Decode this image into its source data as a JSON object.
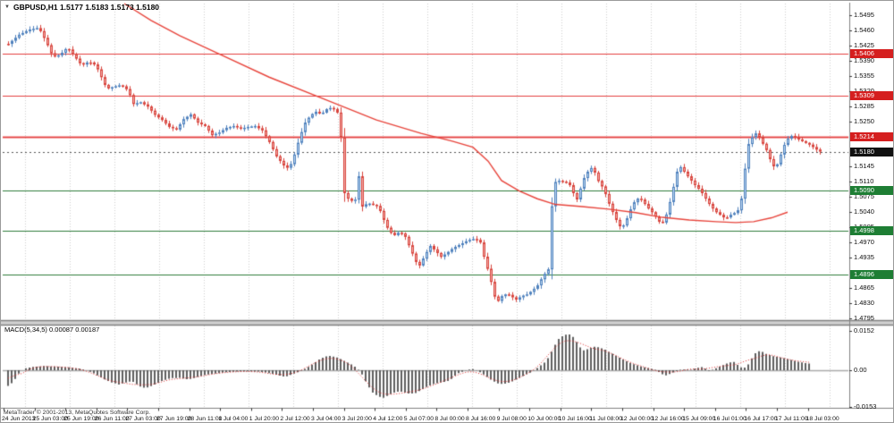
{
  "window": {
    "symbol_arrow": "▼",
    "title": "GBPUSD,H1 1.5177 1.5183 1.5173 1.5180"
  },
  "footer": {
    "copyright": "MetaTrader © 2001-2013, MetaQuotes Software Corp."
  },
  "colors": {
    "up_stroke": "#4f81bd",
    "up_fill": "#bdd7f0",
    "down_stroke": "#d8433c",
    "down_fill": "#f2aeaa",
    "ma": "#e8453c",
    "resistance": "#e34040",
    "support": "#2f7d3b",
    "current_price_line": "#555555",
    "grid": "#cfcfcf",
    "histogram": "#5f5f5f",
    "signal": "#e03030",
    "badge_red": "#d51f1f",
    "badge_green": "#1e7e34",
    "badge_black": "#111111",
    "frame": "#808080",
    "separator_fill": "#d0d0d0"
  },
  "chart_data": [
    {
      "type": "candlestick",
      "symbol": "GBPUSD",
      "timeframe": "H1",
      "title": "GBPUSD,H1 1.5177 1.5183 1.5173 1.5180",
      "quote": {
        "open": "1.5177",
        "high": "1.5183",
        "low": "1.5173",
        "close": "1.5180"
      },
      "ylim": [
        1.4795,
        1.5495
      ],
      "grid": "vertical-dotted",
      "y_ticks": [
        "1.5495",
        "1.5460",
        "1.5425",
        "1.5390",
        "1.5355",
        "1.5320",
        "1.5285",
        "1.5250",
        "1.5145",
        "1.5110",
        "1.5075",
        "1.5040",
        "1.5005",
        "1.4970",
        "1.4935",
        "1.4865",
        "1.4830",
        "1.4795"
      ],
      "x_labels": [
        "24 Jun 2013",
        "25 Jun 03:00",
        "25 Jun 19:00",
        "26 Jun 11:00",
        "27 Jun 03:00",
        "27 Jun 19:00",
        "28 Jun 11:00",
        "1 Jul 04:00",
        "1 Jul 20:00",
        "2 Jul 12:00",
        "3 Jul 04:00",
        "3 Jul 20:00",
        "4 Jul 12:00",
        "5 Jul 07:00",
        "8 Jul 00:00",
        "8 Jul 16:00",
        "9 Jul 08:00",
        "10 Jul 00:00",
        "10 Jul 16:00",
        "11 Jul 08:00",
        "12 Jul 00:00",
        "12 Jul 16:00",
        "15 Jul 09:00",
        "16 Jul 01:00",
        "16 Jul 17:00",
        "17 Jul 11:00",
        "18 Jul 03:00"
      ],
      "levels": {
        "resistance": [
          1.5406,
          1.5309,
          1.5214
        ],
        "support": [
          1.509,
          1.4998,
          1.4896
        ],
        "current": 1.518
      },
      "close_path": [
        [
          8,
          1.5429
        ],
        [
          20,
          1.545
        ],
        [
          32,
          1.5462
        ],
        [
          42,
          1.5466
        ],
        [
          50,
          1.5435
        ],
        [
          58,
          1.5398
        ],
        [
          66,
          1.5404
        ],
        [
          74,
          1.5421
        ],
        [
          82,
          1.54
        ],
        [
          90,
          1.5379
        ],
        [
          98,
          1.5388
        ],
        [
          106,
          1.5379
        ],
        [
          112,
          1.5352
        ],
        [
          118,
          1.5325
        ],
        [
          126,
          1.533
        ],
        [
          134,
          1.5334
        ],
        [
          142,
          1.5321
        ],
        [
          148,
          1.529
        ],
        [
          156,
          1.5294
        ],
        [
          164,
          1.5284
        ],
        [
          172,
          1.5265
        ],
        [
          180,
          1.5253
        ],
        [
          188,
          1.5237
        ],
        [
          196,
          1.5231
        ],
        [
          204,
          1.5255
        ],
        [
          212,
          1.5266
        ],
        [
          220,
          1.5247
        ],
        [
          228,
          1.5239
        ],
        [
          236,
          1.5218
        ],
        [
          244,
          1.5224
        ],
        [
          252,
          1.5235
        ],
        [
          260,
          1.5239
        ],
        [
          268,
          1.5233
        ],
        [
          276,
          1.5237
        ],
        [
          284,
          1.5239
        ],
        [
          292,
          1.5229
        ],
        [
          300,
          1.5202
        ],
        [
          308,
          1.5169
        ],
        [
          316,
          1.5148
        ],
        [
          322,
          1.514
        ],
        [
          328,
          1.5173
        ],
        [
          334,
          1.5214
        ],
        [
          340,
          1.5247
        ],
        [
          346,
          1.5264
        ],
        [
          352,
          1.5272
        ],
        [
          358,
          1.5266
        ],
        [
          364,
          1.5278
        ],
        [
          370,
          1.5282
        ],
        [
          376,
          1.527
        ],
        [
          381,
          1.5198
        ],
        [
          384,
          1.5084
        ],
        [
          390,
          1.5065
        ],
        [
          396,
          1.5069
        ],
        [
          400,
          1.5123
        ],
        [
          404,
          1.5053
        ],
        [
          410,
          1.5061
        ],
        [
          416,
          1.5057
        ],
        [
          422,
          1.5053
        ],
        [
          428,
          1.5022
        ],
        [
          434,
          1.4995
        ],
        [
          440,
          1.4987
        ],
        [
          446,
          1.4995
        ],
        [
          452,
          1.4983
        ],
        [
          458,
          1.4954
        ],
        [
          464,
          1.4925
        ],
        [
          468,
          1.4917
        ],
        [
          474,
          1.4941
        ],
        [
          480,
          1.4962
        ],
        [
          486,
          1.495
        ],
        [
          492,
          1.4937
        ],
        [
          498,
          1.4945
        ],
        [
          506,
          1.4958
        ],
        [
          514,
          1.4966
        ],
        [
          522,
          1.4975
        ],
        [
          530,
          1.4979
        ],
        [
          536,
          1.497
        ],
        [
          541,
          1.4929
        ],
        [
          546,
          1.4896
        ],
        [
          552,
          1.4845
        ],
        [
          556,
          1.4835
        ],
        [
          560,
          1.4846
        ],
        [
          566,
          1.4852
        ],
        [
          570,
          1.4846
        ],
        [
          576,
          1.4838
        ],
        [
          582,
          1.4846
        ],
        [
          588,
          1.485
        ],
        [
          594,
          1.4859
        ],
        [
          600,
          1.4871
        ],
        [
          606,
          1.4892
        ],
        [
          612,
          1.4908
        ],
        [
          617,
          1.509
        ],
        [
          622,
          1.5123
        ],
        [
          626,
          1.5102
        ],
        [
          630,
          1.5119
        ],
        [
          634,
          1.5098
        ],
        [
          638,
          1.5107
        ],
        [
          642,
          1.5061
        ],
        [
          646,
          1.5078
        ],
        [
          650,
          1.5111
        ],
        [
          654,
          1.5127
        ],
        [
          658,
          1.514
        ],
        [
          662,
          1.5144
        ],
        [
          666,
          1.5119
        ],
        [
          670,
          1.5105
        ],
        [
          674,
          1.5094
        ],
        [
          678,
          1.507
        ],
        [
          682,
          1.5049
        ],
        [
          686,
          1.5032
        ],
        [
          690,
          1.5012
        ],
        [
          694,
          1.5003
        ],
        [
          698,
          1.5016
        ],
        [
          702,
          1.5036
        ],
        [
          706,
          1.5057
        ],
        [
          710,
          1.5069
        ],
        [
          714,
          1.5073
        ],
        [
          718,
          1.5065
        ],
        [
          722,
          1.5053
        ],
        [
          726,
          1.5044
        ],
        [
          730,
          1.5036
        ],
        [
          734,
          1.5024
        ],
        [
          738,
          1.5012
        ],
        [
          742,
          1.502
        ],
        [
          746,
          1.5049
        ],
        [
          750,
          1.5078
        ],
        [
          754,
          1.5119
        ],
        [
          758,
          1.5148
        ],
        [
          762,
          1.514
        ],
        [
          766,
          1.5127
        ],
        [
          770,
          1.5119
        ],
        [
          774,
          1.5107
        ],
        [
          778,
          1.5098
        ],
        [
          782,
          1.509
        ],
        [
          786,
          1.5078
        ],
        [
          790,
          1.5065
        ],
        [
          794,
          1.5053
        ],
        [
          798,
          1.5044
        ],
        [
          802,
          1.5036
        ],
        [
          806,
          1.5032
        ],
        [
          810,
          1.5024
        ],
        [
          814,
          1.5032
        ],
        [
          818,
          1.5036
        ],
        [
          822,
          1.504
        ],
        [
          826,
          1.5049
        ],
        [
          830,
          1.5094
        ],
        [
          834,
          1.5187
        ],
        [
          838,
          1.5208
        ],
        [
          842,
          1.5218
        ],
        [
          846,
          1.5226
        ],
        [
          850,
          1.5202
        ],
        [
          854,
          1.5194
        ],
        [
          858,
          1.5173
        ],
        [
          862,
          1.5152
        ],
        [
          866,
          1.514
        ],
        [
          870,
          1.5161
        ],
        [
          874,
          1.5185
        ],
        [
          878,
          1.5206
        ],
        [
          882,
          1.5214
        ],
        [
          886,
          1.5218
        ],
        [
          890,
          1.521
        ],
        [
          894,
          1.5206
        ],
        [
          898,
          1.5202
        ],
        [
          902,
          1.5198
        ],
        [
          906,
          1.5194
        ],
        [
          910,
          1.5187
        ],
        [
          916,
          1.518
        ]
      ],
      "ma_path": [
        [
          138,
          1.553
        ],
        [
          168,
          1.5483
        ],
        [
          200,
          1.5448
        ],
        [
          248,
          1.5402
        ],
        [
          300,
          1.5352
        ],
        [
          363,
          1.53
        ],
        [
          420,
          1.5253
        ],
        [
          470,
          1.5222
        ],
        [
          505,
          1.5204
        ],
        [
          528,
          1.519
        ],
        [
          545,
          1.5158
        ],
        [
          560,
          1.5113
        ],
        [
          580,
          1.5089
        ],
        [
          600,
          1.5071
        ],
        [
          620,
          1.5058
        ],
        [
          650,
          1.5053
        ],
        [
          680,
          1.5047
        ],
        [
          710,
          1.5039
        ],
        [
          740,
          1.5028
        ],
        [
          770,
          1.5022
        ],
        [
          800,
          1.5018
        ],
        [
          822,
          1.5016
        ],
        [
          842,
          1.5018
        ],
        [
          862,
          1.5027
        ],
        [
          880,
          1.504
        ]
      ]
    },
    {
      "type": "bar",
      "title": "MACD(5,34,5) 0.00087 0.00187",
      "name": "MACD",
      "params": "5,34,5",
      "values_label": [
        "0.00087",
        "0.00187"
      ],
      "y_ticks": [
        "0.0152",
        "0.00",
        "-0.0153"
      ],
      "ylim": [
        -0.0153,
        0.0152
      ],
      "legend_position": "top-left",
      "histogram_keypoints": [
        [
          8,
          -0.006
        ],
        [
          14,
          -0.0045
        ],
        [
          18,
          -0.0022
        ],
        [
          22,
          -0.0004
        ],
        [
          28,
          0.0008
        ],
        [
          36,
          0.0013
        ],
        [
          48,
          0.0016
        ],
        [
          62,
          0.0014
        ],
        [
          76,
          0.0011
        ],
        [
          88,
          0.0006
        ],
        [
          96,
          0.0
        ],
        [
          104,
          -0.0012
        ],
        [
          114,
          -0.0032
        ],
        [
          124,
          -0.0047
        ],
        [
          132,
          -0.0055
        ],
        [
          140,
          -0.0047
        ],
        [
          147,
          -0.0042
        ],
        [
          155,
          -0.0062
        ],
        [
          162,
          -0.0069
        ],
        [
          170,
          -0.0059
        ],
        [
          180,
          -0.0041
        ],
        [
          190,
          -0.0031
        ],
        [
          200,
          -0.0029
        ],
        [
          210,
          -0.0036
        ],
        [
          220,
          -0.0026
        ],
        [
          230,
          -0.0017
        ],
        [
          244,
          -0.0011
        ],
        [
          258,
          -0.0006
        ],
        [
          272,
          -0.0004
        ],
        [
          288,
          -0.0005
        ],
        [
          300,
          -0.0011
        ],
        [
          310,
          -0.0019
        ],
        [
          318,
          -0.0026
        ],
        [
          326,
          -0.0016
        ],
        [
          334,
          -0.0005
        ],
        [
          342,
          0.0009
        ],
        [
          350,
          0.0026
        ],
        [
          358,
          0.0046
        ],
        [
          366,
          0.0056
        ],
        [
          374,
          0.0052
        ],
        [
          382,
          0.004
        ],
        [
          390,
          0.0026
        ],
        [
          398,
          0.001
        ],
        [
          404,
          -0.0016
        ],
        [
          410,
          -0.0056
        ],
        [
          416,
          -0.0086
        ],
        [
          422,
          -0.0101
        ],
        [
          428,
          -0.0106
        ],
        [
          434,
          -0.0096
        ],
        [
          440,
          -0.0086
        ],
        [
          446,
          -0.0081
        ],
        [
          452,
          -0.0086
        ],
        [
          458,
          -0.0091
        ],
        [
          464,
          -0.0088
        ],
        [
          470,
          -0.0076
        ],
        [
          478,
          -0.0061
        ],
        [
          486,
          -0.0051
        ],
        [
          494,
          -0.0046
        ],
        [
          502,
          -0.004
        ],
        [
          510,
          -0.0014
        ],
        [
          516,
          -0.0006
        ],
        [
          522,
          0.0002
        ],
        [
          528,
          0.0004
        ],
        [
          534,
          -0.0003
        ],
        [
          540,
          -0.0016
        ],
        [
          548,
          -0.0036
        ],
        [
          555,
          -0.005
        ],
        [
          562,
          -0.0054
        ],
        [
          570,
          -0.0046
        ],
        [
          578,
          -0.0033
        ],
        [
          586,
          -0.0019
        ],
        [
          594,
          -0.0006
        ],
        [
          602,
          0.0014
        ],
        [
          610,
          0.0034
        ],
        [
          617,
          0.0078
        ],
        [
          623,
          0.0118
        ],
        [
          629,
          0.0134
        ],
        [
          635,
          0.014
        ],
        [
          641,
          0.0126
        ],
        [
          647,
          0.0092
        ],
        [
          651,
          0.0076
        ],
        [
          657,
          0.0082
        ],
        [
          663,
          0.0091
        ],
        [
          669,
          0.0088
        ],
        [
          675,
          0.0081
        ],
        [
          681,
          0.0069
        ],
        [
          688,
          0.0056
        ],
        [
          695,
          0.0043
        ],
        [
          702,
          0.0031
        ],
        [
          710,
          0.0021
        ],
        [
          718,
          0.0013
        ],
        [
          726,
          0.0007
        ],
        [
          733,
          0.0001
        ],
        [
          738,
          -0.0012
        ],
        [
          743,
          -0.0021
        ],
        [
          748,
          -0.0015
        ],
        [
          754,
          -0.0006
        ],
        [
          760,
          0.0002
        ],
        [
          766,
          0.0003
        ],
        [
          772,
          0.0002
        ],
        [
          778,
          0.0008
        ],
        [
          784,
          0.0012
        ],
        [
          788,
          0.0006
        ],
        [
          792,
          -0.0003
        ],
        [
          797,
          0.0003
        ],
        [
          803,
          0.0012
        ],
        [
          809,
          0.0021
        ],
        [
          815,
          0.003
        ],
        [
          820,
          0.0032
        ],
        [
          825,
          0.0018
        ],
        [
          830,
          0.0007
        ],
        [
          835,
          0.0016
        ],
        [
          840,
          0.0046
        ],
        [
          845,
          0.007
        ],
        [
          850,
          0.0075
        ],
        [
          856,
          0.0063
        ],
        [
          862,
          0.0056
        ],
        [
          868,
          0.0052
        ],
        [
          874,
          0.0048
        ],
        [
          880,
          0.0043
        ],
        [
          886,
          0.0038
        ],
        [
          892,
          0.0033
        ],
        [
          898,
          0.0029
        ],
        [
          904,
          0.0026
        ]
      ]
    }
  ]
}
